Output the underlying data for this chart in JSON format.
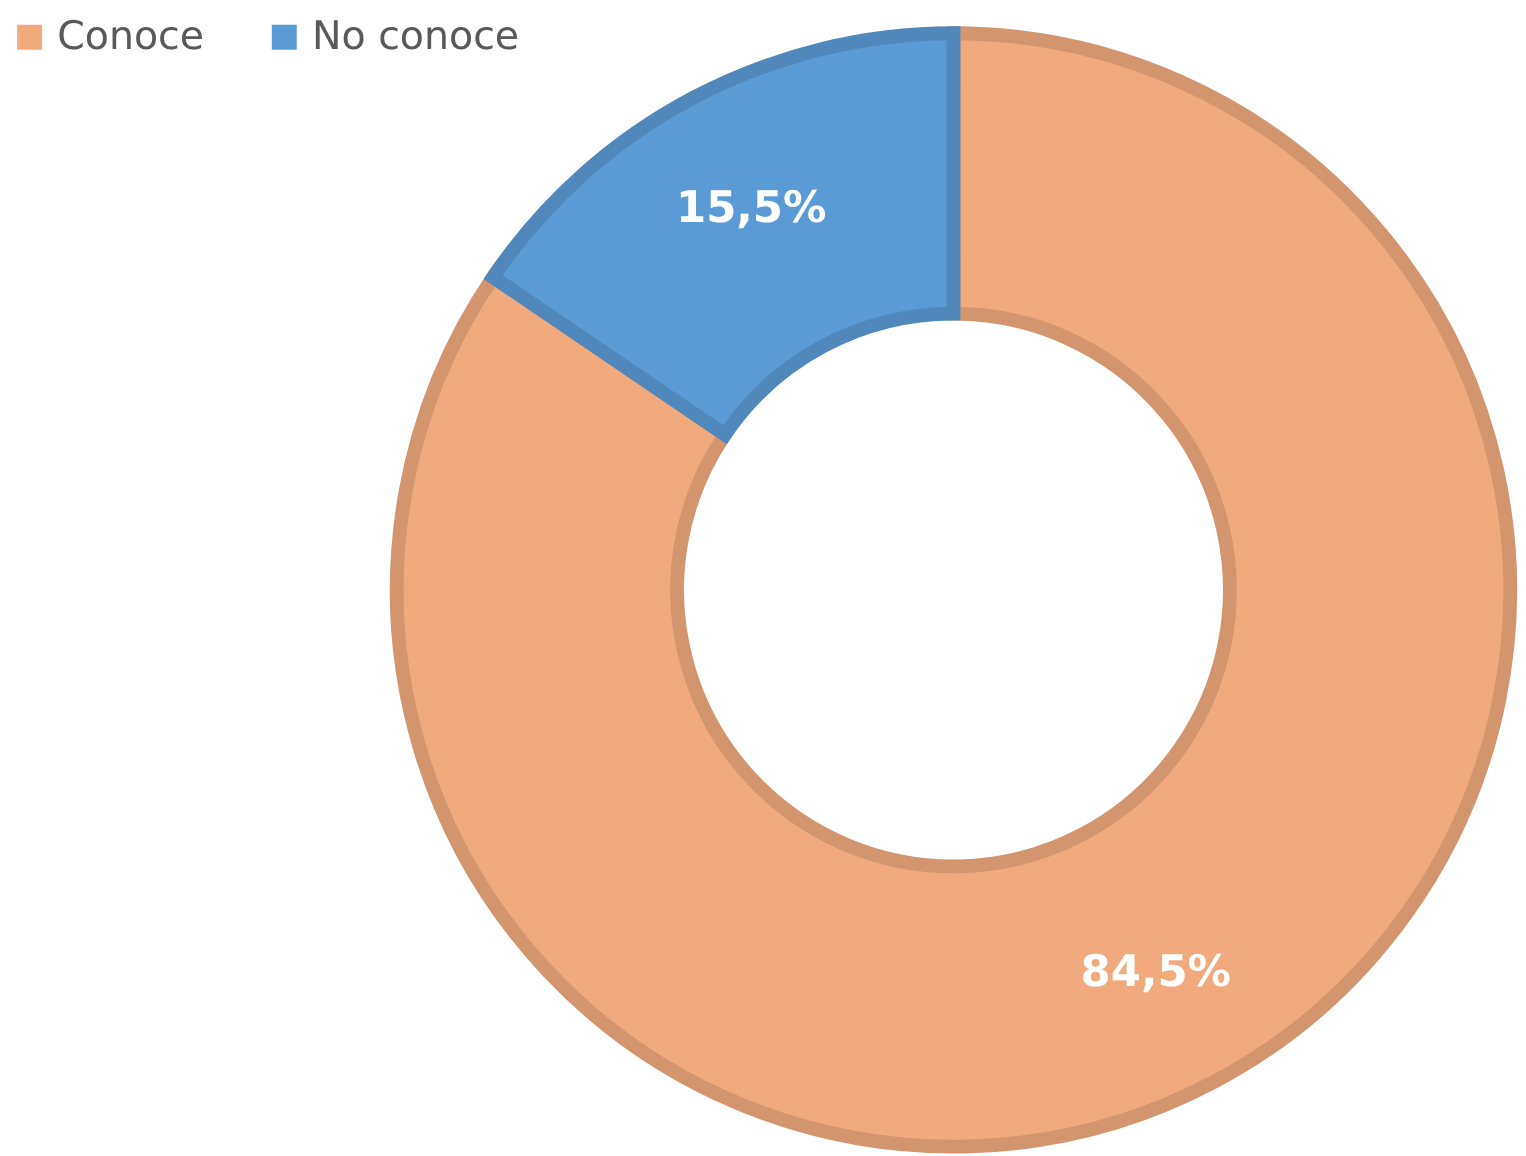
{
  "chart_data": {
    "type": "donut",
    "categories": [
      "Conoce",
      "No conoce"
    ],
    "values": [
      84.5,
      15.5
    ],
    "colors": [
      "#f0aa7e",
      "#5b9bd5"
    ],
    "value_labels": [
      "84,5%",
      "15,5%"
    ],
    "legend": "top left"
  }
}
